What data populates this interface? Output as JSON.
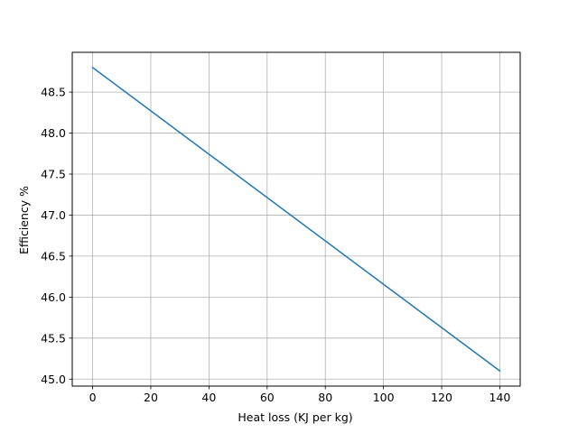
{
  "chart_data": {
    "type": "line",
    "title": "",
    "xlabel": "Heat loss (KJ per kg)",
    "ylabel": "Efficiency %",
    "xlim": [
      -7,
      147
    ],
    "ylim": [
      44.915,
      48.985
    ],
    "xticks": [
      0,
      20,
      40,
      60,
      80,
      100,
      120,
      140
    ],
    "yticks": [
      45.0,
      45.5,
      46.0,
      46.5,
      47.0,
      47.5,
      48.0,
      48.5
    ],
    "grid": true,
    "legend": "none",
    "series": [
      {
        "color": "#1f77b4",
        "x": [
          0,
          140
        ],
        "y": [
          48.8,
          45.1
        ]
      }
    ]
  }
}
